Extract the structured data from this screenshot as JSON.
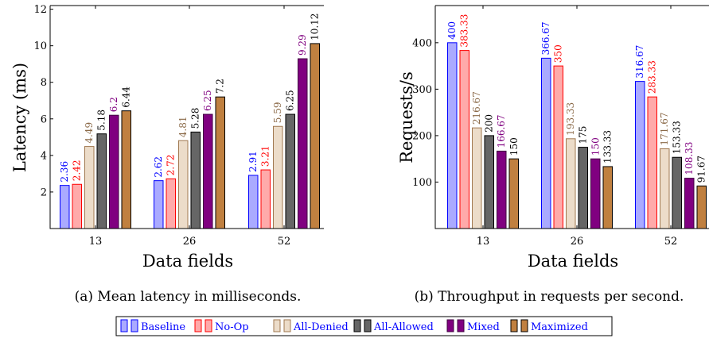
{
  "series_styles": [
    {
      "fill": "#aaaaff",
      "stroke": "#0000ff",
      "label_color": "#0000ff"
    },
    {
      "fill": "#ffaaaa",
      "stroke": "#ff0000",
      "label_color": "#ff0000"
    },
    {
      "fill": "#ecdcc9",
      "stroke": "#a07850",
      "label_color": "#8b6a48"
    },
    {
      "fill": "#666666",
      "stroke": "#000000",
      "label_color": "#000000"
    },
    {
      "fill": "#800080",
      "stroke": "#400040",
      "label_color": "#800080"
    },
    {
      "fill": "#c08040",
      "stroke": "#000000",
      "label_color": "#000000"
    }
  ],
  "legend": {
    "items": [
      "Baseline",
      "No-Op",
      "All-Denied",
      "All-Allowed",
      "Mixed",
      "Maximized"
    ]
  },
  "chart_data": [
    {
      "type": "bar",
      "title": "",
      "caption": "(a) Mean latency in milliseconds.",
      "xlabel": "Data fields",
      "ylabel": "Latency (ms)",
      "categories": [
        "13",
        "26",
        "52"
      ],
      "yticks": [
        "2",
        "4",
        "6",
        "8",
        "10",
        "12"
      ],
      "ylim": [
        0,
        12.2
      ],
      "grid": false,
      "series": [
        {
          "name": "Baseline",
          "values": [
            2.36,
            2.62,
            2.91
          ],
          "labels": [
            "2.36",
            "2.62",
            "2.91"
          ]
        },
        {
          "name": "No-Op",
          "values": [
            2.42,
            2.72,
            3.21
          ],
          "labels": [
            "2.42",
            "2.72",
            "3.21"
          ]
        },
        {
          "name": "All-Denied",
          "values": [
            4.49,
            4.81,
            5.59
          ],
          "labels": [
            "4.49",
            "4.81",
            "5.59"
          ]
        },
        {
          "name": "All-Allowed",
          "values": [
            5.18,
            5.28,
            6.25
          ],
          "labels": [
            "5.18",
            "5.28",
            "6.25"
          ]
        },
        {
          "name": "Mixed",
          "values": [
            6.2,
            6.25,
            9.29
          ],
          "labels": [
            "6.2",
            "6.25",
            "9.29"
          ]
        },
        {
          "name": "Maximized",
          "values": [
            6.44,
            7.2,
            10.12
          ],
          "labels": [
            "6.44",
            "7.2",
            "10.12"
          ]
        }
      ]
    },
    {
      "type": "bar",
      "title": "",
      "caption": "(b) Throughput in requests per second.",
      "xlabel": "Data fields",
      "ylabel": "Requests/s",
      "categories": [
        "13",
        "26",
        "52"
      ],
      "yticks": [
        "100",
        "200",
        "300",
        "400"
      ],
      "ylim": [
        0,
        480
      ],
      "grid": false,
      "series": [
        {
          "name": "Baseline",
          "values": [
            400,
            366.67,
            316.67
          ],
          "labels": [
            "400",
            "366.67",
            "316.67"
          ]
        },
        {
          "name": "No-Op",
          "values": [
            383.33,
            350,
            283.33
          ],
          "labels": [
            "383.33",
            "350",
            "283.33"
          ]
        },
        {
          "name": "All-Denied",
          "values": [
            216.67,
            193.33,
            171.67
          ],
          "labels": [
            "216.67",
            "193.33",
            "171.67"
          ]
        },
        {
          "name": "All-Allowed",
          "values": [
            200,
            175,
            153.33
          ],
          "labels": [
            "200",
            "175",
            "153.33"
          ]
        },
        {
          "name": "Mixed",
          "values": [
            166.67,
            150,
            108.33
          ],
          "labels": [
            "166.67",
            "150",
            "108.33"
          ]
        },
        {
          "name": "Maximized",
          "values": [
            150,
            133.33,
            91.67
          ],
          "labels": [
            "150",
            "133.33",
            "91.67"
          ]
        }
      ]
    }
  ]
}
